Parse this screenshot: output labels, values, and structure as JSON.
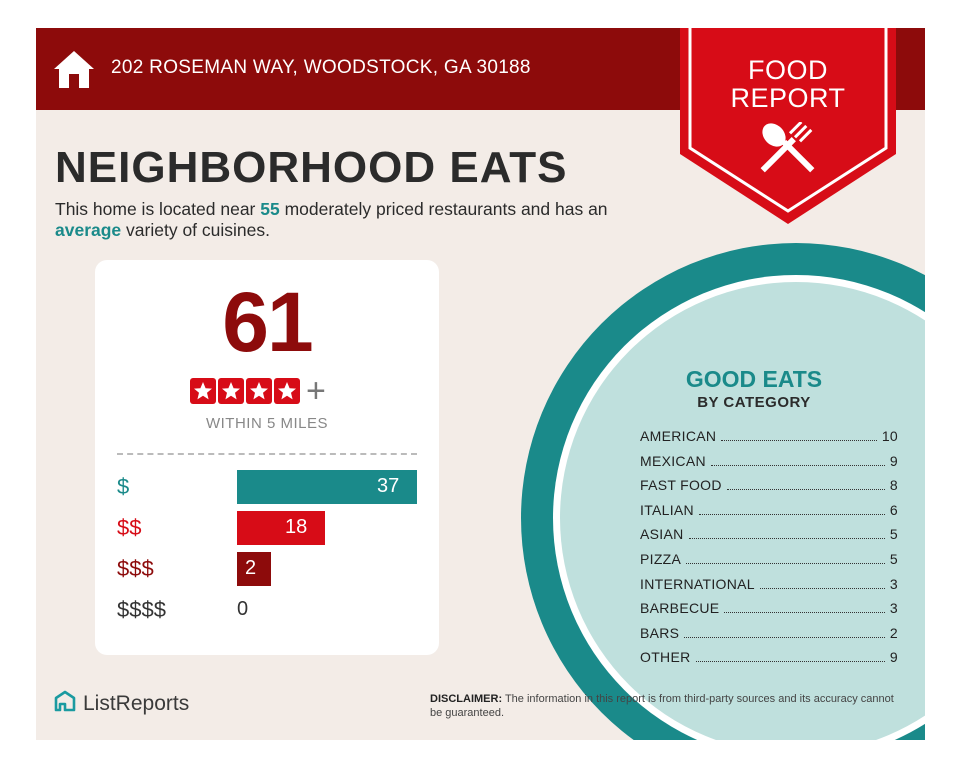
{
  "header": {
    "address": "202 ROSEMAN WAY, WOODSTOCK, GA 30188",
    "badge_line1": "FOOD",
    "badge_line2": "REPORT",
    "icon": "home-icon",
    "badge_icon": "utensils-icon"
  },
  "title": "NEIGHBORHOOD EATS",
  "description": {
    "pre": "This home is located near ",
    "count": "55",
    "mid": " moderately priced restaurants and has an ",
    "variety": "average",
    "post": " variety of cuisines."
  },
  "score_card": {
    "score": "61",
    "stars": 4,
    "stars_suffix": "+",
    "within": "WITHIN 5 MILES",
    "tiers": [
      {
        "label": "$",
        "count": "37",
        "value": 37,
        "color": "#1a8a8a"
      },
      {
        "label": "$$",
        "count": "18",
        "value": 18,
        "color": "#d70c17"
      },
      {
        "label": "$$$",
        "count": "2",
        "value": 2,
        "color": "#8d0b0b"
      },
      {
        "label": "$$$$",
        "count": "0",
        "value": 0,
        "color": "#333333"
      }
    ]
  },
  "good_eats": {
    "title": "GOOD EATS",
    "subtitle": "BY CATEGORY",
    "categories": [
      {
        "name": "AMERICAN",
        "count": "10"
      },
      {
        "name": "MEXICAN",
        "count": "9"
      },
      {
        "name": "FAST FOOD",
        "count": "8"
      },
      {
        "name": "ITALIAN",
        "count": "6"
      },
      {
        "name": "ASIAN",
        "count": "5"
      },
      {
        "name": "PIZZA",
        "count": "5"
      },
      {
        "name": "INTERNATIONAL",
        "count": "3"
      },
      {
        "name": "BARBECUE",
        "count": "3"
      },
      {
        "name": "BARS",
        "count": "2"
      },
      {
        "name": "OTHER",
        "count": "9"
      }
    ]
  },
  "footer": {
    "logo_text": "ListReports",
    "logo_icon": "listreports-logo-icon",
    "disclaimer_label": "DISCLAIMER:",
    "disclaimer_text": " The information in this report is from third-party sources and its accuracy cannot be guaranteed."
  },
  "colors": {
    "dark_red": "#8d0b0b",
    "red": "#d70c17",
    "teal": "#1a8a8a",
    "light_teal": "#bfe0dd",
    "background": "#f3ece7"
  }
}
